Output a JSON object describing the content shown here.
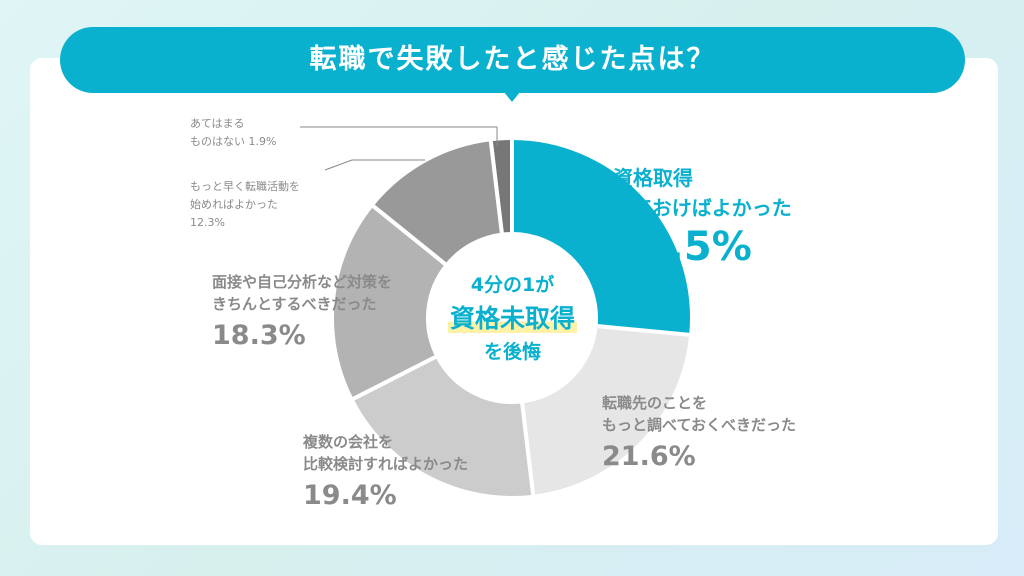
{
  "title": "転職で失敗したと感じた点は？",
  "center": {
    "line1": "4分の1が",
    "line2": "資格未取得",
    "line3": "を後悔"
  },
  "colors": {
    "accent": "#0ab1cf",
    "highlight": "#fff1a8"
  },
  "chart_data": {
    "type": "pie",
    "donut": true,
    "title": "転職で失敗したと感じた点は？",
    "slices": [
      {
        "label_lines": [
          "資格取得",
          "しておけばよかった"
        ],
        "value": 26.5,
        "value_text": "26.5%",
        "color": "#0ab1cf"
      },
      {
        "label_lines": [
          "転職先のことを",
          "もっと調べておくべきだった"
        ],
        "value": 21.6,
        "value_text": "21.6%",
        "color": "#e6e6e6"
      },
      {
        "label_lines": [
          "複数の会社を",
          "比較検討すればよかった"
        ],
        "value": 19.4,
        "value_text": "19.4%",
        "color": "#cccccc"
      },
      {
        "label_lines": [
          "面接や自己分析など対策を",
          "きちんとするべきだった"
        ],
        "value": 18.3,
        "value_text": "18.3%",
        "color": "#b3b3b3"
      },
      {
        "label_lines": [
          "もっと早く転職活動を",
          "始めればよかった"
        ],
        "value": 12.3,
        "value_text": "12.3%",
        "color": "#999999"
      },
      {
        "label_lines": [
          "あてはまる",
          "ものはない"
        ],
        "value": 1.9,
        "value_text": "1.9%",
        "color": "#777777"
      }
    ]
  }
}
